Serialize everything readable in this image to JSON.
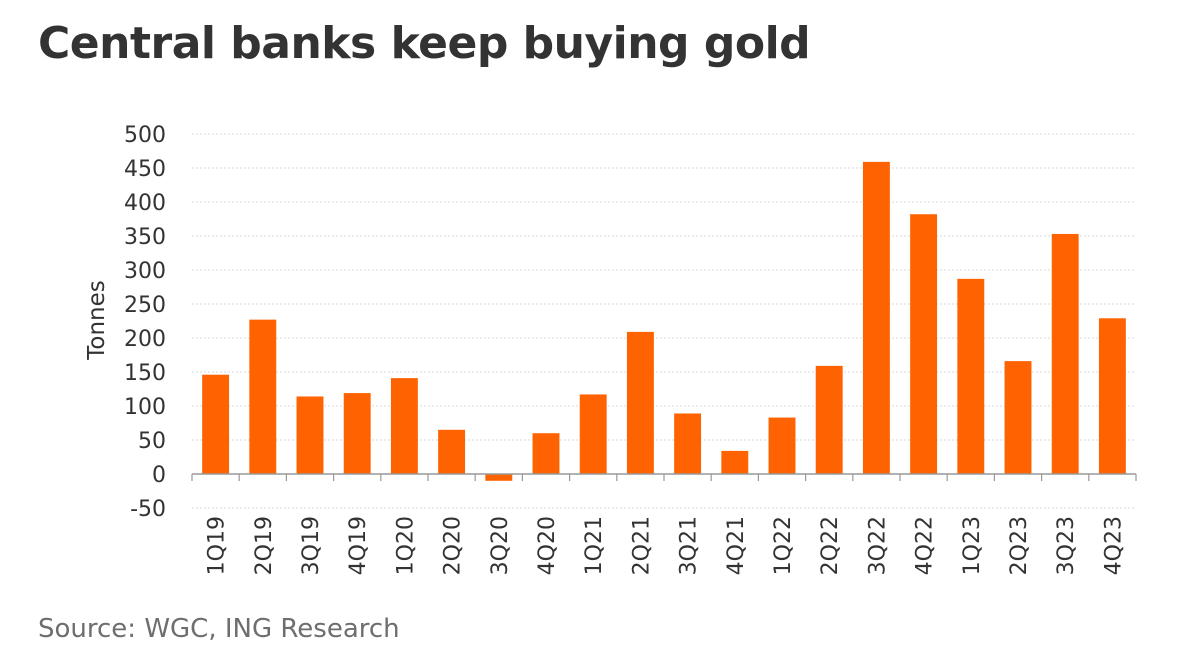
{
  "title": "Central banks keep buying gold",
  "source": "Source: WGC, ING Research",
  "colors": {
    "bar": "#FF6200",
    "grid": "#d9d9d9",
    "text": "#333333"
  },
  "chart_data": {
    "type": "bar",
    "ylabel": "Tonnes",
    "ylim": [
      -50,
      500
    ],
    "yticks": [
      500,
      450,
      400,
      350,
      300,
      250,
      200,
      150,
      100,
      50,
      0,
      -50
    ],
    "grid": true,
    "categories": [
      "1Q19",
      "2Q19",
      "3Q19",
      "4Q19",
      "1Q20",
      "2Q20",
      "3Q20",
      "4Q20",
      "1Q21",
      "2Q21",
      "3Q21",
      "4Q21",
      "1Q22",
      "2Q22",
      "3Q22",
      "4Q22",
      "1Q23",
      "2Q23",
      "3Q23",
      "4Q23"
    ],
    "values": [
      146,
      227,
      114,
      119,
      141,
      65,
      -10,
      60,
      117,
      209,
      89,
      34,
      83,
      159,
      459,
      382,
      287,
      166,
      353,
      229
    ]
  }
}
